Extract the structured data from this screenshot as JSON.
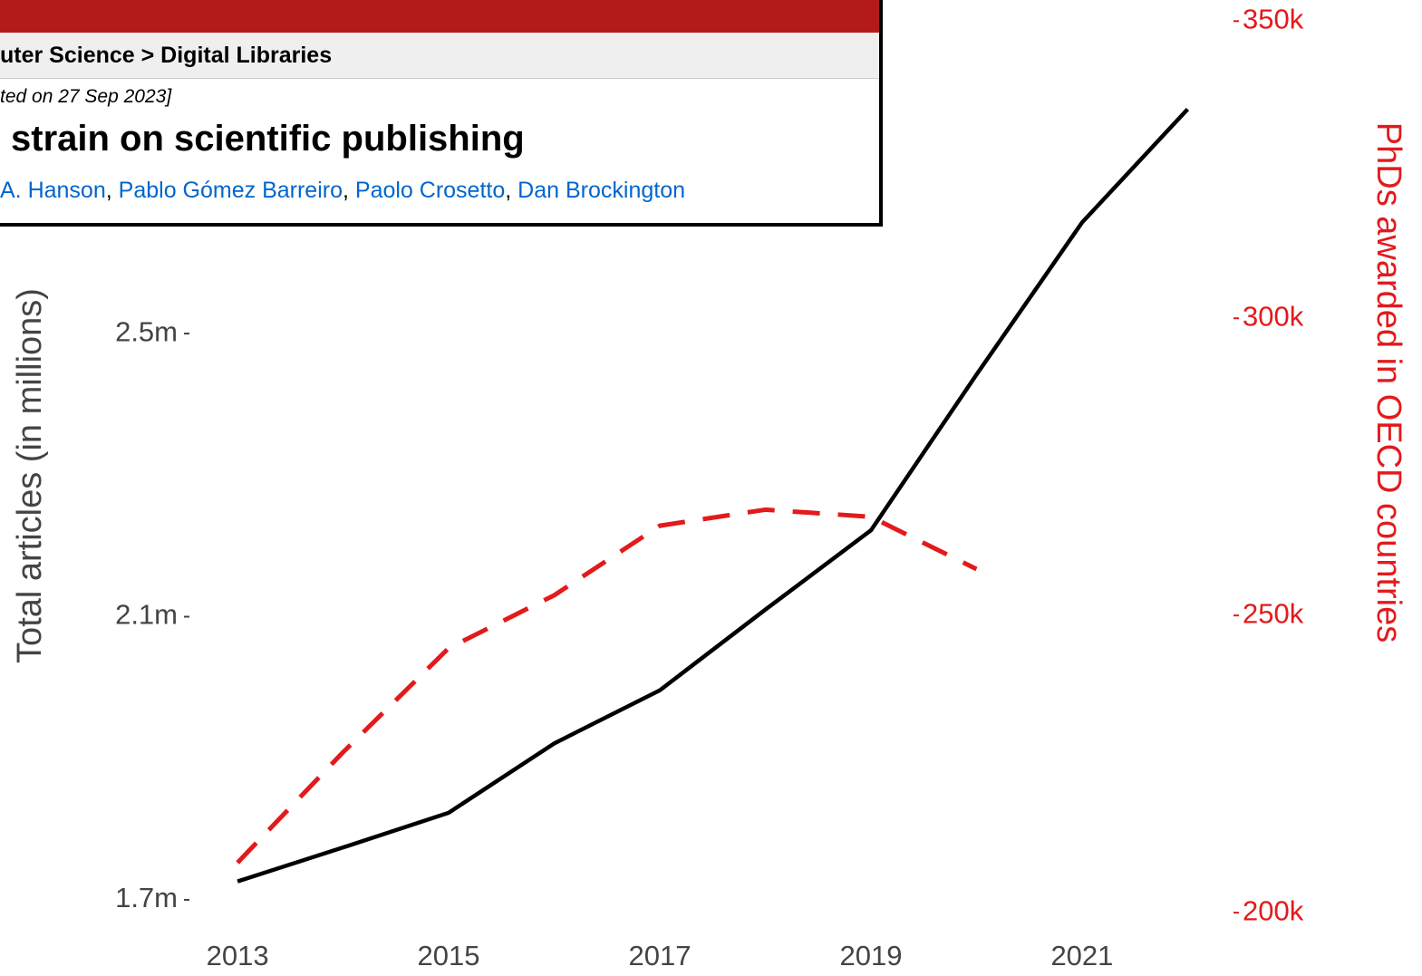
{
  "chart_data": {
    "type": "line",
    "x": [
      2013,
      2014,
      2015,
      2016,
      2017,
      2018,
      2019,
      2020,
      2021,
      2022
    ],
    "xlim": [
      2010.75,
      2024.22
    ],
    "xticks": [
      2013,
      2015,
      2017,
      2019,
      2021
    ],
    "ylabel": "Total articles (in millions)",
    "y2label": "PhDs awarded in OECD countries",
    "ylim": [
      1.65,
      2.97
    ],
    "yticks": [
      {
        "value": 1.7,
        "label": "1.7m"
      },
      {
        "value": 2.1,
        "label": "2.1m"
      },
      {
        "value": 2.5,
        "label": "2.5m"
      }
    ],
    "y2lim": [
      196200,
      353400
    ],
    "y2ticks": [
      {
        "value": 200000,
        "label": "200k"
      },
      {
        "value": 250000,
        "label": "250k"
      },
      {
        "value": 300000,
        "label": "300k"
      },
      {
        "value": 350000,
        "label": "350k"
      }
    ],
    "series": [
      {
        "color": "#000000",
        "values": [
          1.726,
          1.774,
          1.823,
          1.921,
          1.996,
          2.11,
          2.222,
          2.442,
          2.657,
          2.817
        ]
      },
      {
        "color": "#e31a1c",
        "axis": "y2",
        "dashed": true,
        "values": [
          208400,
          227000,
          244500,
          253400,
          265100,
          267800,
          266600,
          257800,
          null,
          null
        ]
      }
    ]
  },
  "overlay": {
    "breadcrumb": "uter Science > Digital Libraries",
    "submitted": "ted on 27 Sep 2023]",
    "title": "strain on scientific publishing",
    "authors": [
      "A. Hanson",
      "Pablo Gómez Barreiro",
      "Paolo Crosetto",
      "Dan Brockington"
    ]
  }
}
